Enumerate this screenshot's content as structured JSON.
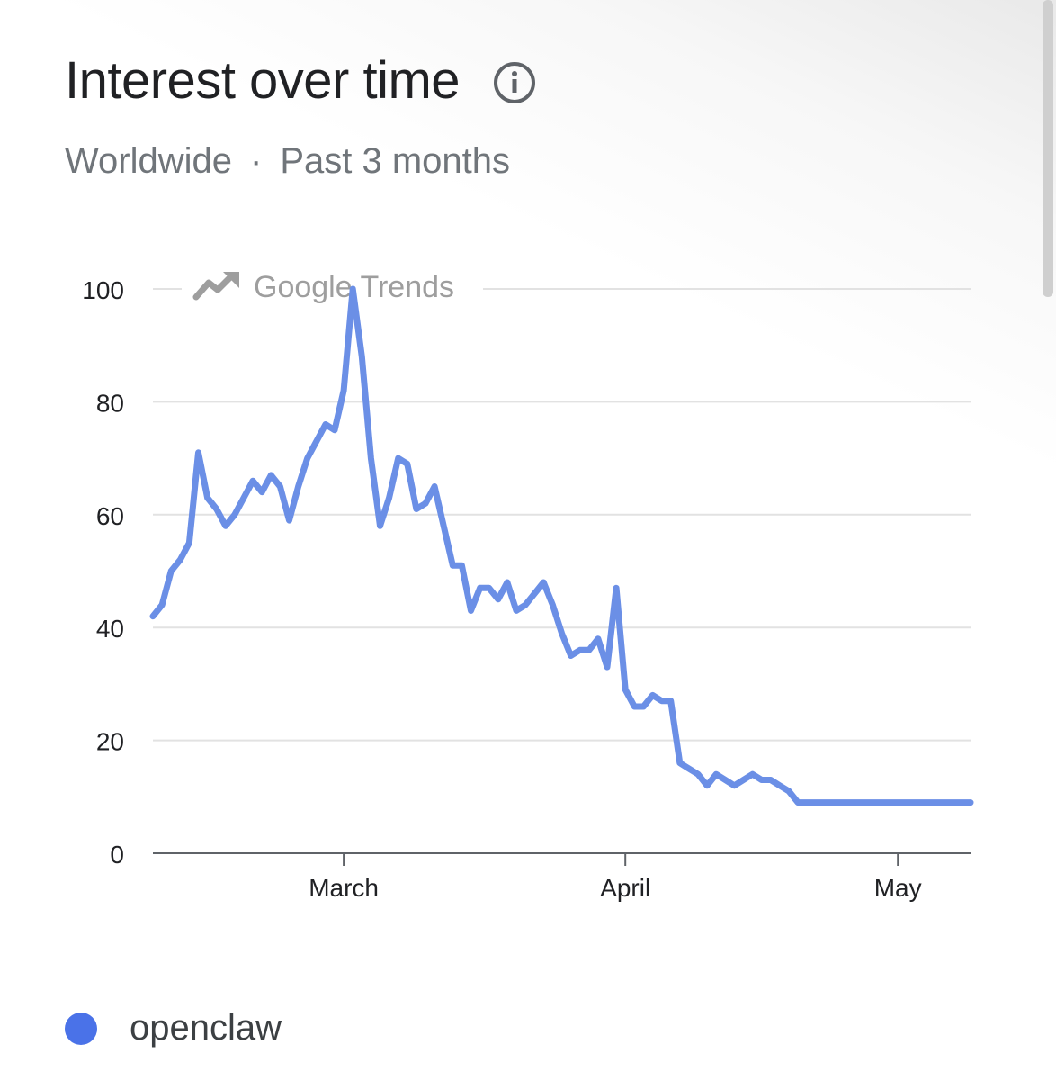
{
  "header": {
    "title": "Interest over time",
    "region": "Worldwide",
    "separator": "·",
    "period": "Past 3 months",
    "info_icon": "info-circle-icon"
  },
  "watermark": {
    "text": "Google Trends",
    "icon": "trending-up-icon"
  },
  "colors": {
    "line": "#6b8fe6",
    "legend_dot": "#4a72e8",
    "grid": "#e2e2e2",
    "axis": "#5f6368"
  },
  "legend": {
    "label": "openclaw"
  },
  "chart_data": {
    "type": "line",
    "title": "Interest over time",
    "xlabel": "",
    "ylabel": "",
    "ylim": [
      0,
      100
    ],
    "yticks": [
      0,
      20,
      40,
      60,
      80,
      100
    ],
    "xlim": [
      "2026-02-08",
      "2026-05-09"
    ],
    "xticks": [
      {
        "label": "March",
        "date": "2026-03-01"
      },
      {
        "label": "April",
        "date": "2026-04-01"
      },
      {
        "label": "May",
        "date": "2026-05-01"
      }
    ],
    "grid": true,
    "legend_position": "bottom-left",
    "series": [
      {
        "name": "openclaw",
        "x": [
          "2026-02-08",
          "2026-02-09",
          "2026-02-10",
          "2026-02-11",
          "2026-02-12",
          "2026-02-13",
          "2026-02-14",
          "2026-02-15",
          "2026-02-16",
          "2026-02-17",
          "2026-02-18",
          "2026-02-19",
          "2026-02-20",
          "2026-02-21",
          "2026-02-22",
          "2026-02-23",
          "2026-02-24",
          "2026-02-25",
          "2026-02-26",
          "2026-02-27",
          "2026-02-28",
          "2026-03-01",
          "2026-03-02",
          "2026-03-03",
          "2026-03-04",
          "2026-03-05",
          "2026-03-06",
          "2026-03-07",
          "2026-03-08",
          "2026-03-09",
          "2026-03-10",
          "2026-03-11",
          "2026-03-12",
          "2026-03-13",
          "2026-03-14",
          "2026-03-15",
          "2026-03-16",
          "2026-03-17",
          "2026-03-18",
          "2026-03-19",
          "2026-03-20",
          "2026-03-21",
          "2026-03-22",
          "2026-03-23",
          "2026-03-24",
          "2026-03-25",
          "2026-03-26",
          "2026-03-27",
          "2026-03-28",
          "2026-03-29",
          "2026-03-30",
          "2026-03-31",
          "2026-04-01",
          "2026-04-02",
          "2026-04-03",
          "2026-04-04",
          "2026-04-05",
          "2026-04-06",
          "2026-04-07",
          "2026-04-08",
          "2026-04-09",
          "2026-04-10",
          "2026-04-11",
          "2026-04-12",
          "2026-04-13",
          "2026-04-14",
          "2026-04-15",
          "2026-04-16",
          "2026-04-17",
          "2026-04-18",
          "2026-04-19",
          "2026-04-20",
          "2026-04-21",
          "2026-04-22",
          "2026-04-23",
          "2026-04-24",
          "2026-04-25",
          "2026-04-26",
          "2026-04-27",
          "2026-04-28",
          "2026-04-29",
          "2026-04-30",
          "2026-05-01",
          "2026-05-02",
          "2026-05-03",
          "2026-05-04",
          "2026-05-05",
          "2026-05-06",
          "2026-05-07",
          "2026-05-08",
          "2026-05-09"
        ],
        "values": [
          42,
          44,
          50,
          52,
          55,
          71,
          63,
          61,
          58,
          60,
          63,
          66,
          64,
          67,
          65,
          59,
          65,
          70,
          73,
          76,
          75,
          82,
          100,
          88,
          70,
          58,
          63,
          70,
          69,
          61,
          62,
          65,
          58,
          51,
          51,
          43,
          47,
          47,
          45,
          48,
          43,
          44,
          46,
          48,
          44,
          39,
          35,
          36,
          36,
          38,
          33,
          47,
          29,
          26,
          26,
          28,
          27,
          27,
          16,
          15,
          14,
          12,
          14,
          13,
          12,
          13,
          14,
          13,
          13,
          12,
          11,
          9,
          9,
          9,
          9,
          9,
          9,
          9,
          9,
          9,
          9,
          9,
          9,
          9,
          9,
          9,
          9,
          9,
          9,
          9,
          9
        ]
      }
    ]
  }
}
